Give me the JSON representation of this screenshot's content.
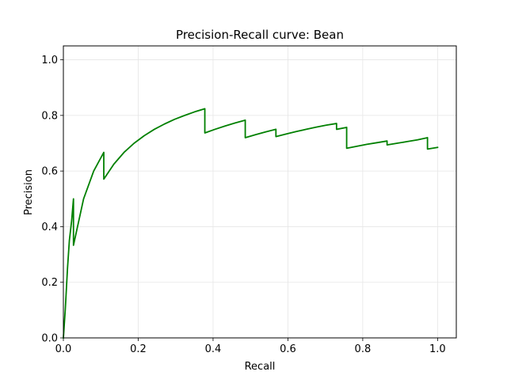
{
  "chart_data": {
    "type": "line",
    "title": "Precision-Recall curve: Bean",
    "xlabel": "Recall",
    "ylabel": "Precision",
    "xlim": [
      0.0,
      1.05
    ],
    "ylim": [
      0.0,
      1.05
    ],
    "xticks": [
      "0.0",
      "0.2",
      "0.4",
      "0.6",
      "0.8",
      "1.0"
    ],
    "yticks": [
      "0.0",
      "0.2",
      "0.4",
      "0.6",
      "0.8",
      "1.0"
    ],
    "grid": true,
    "series": [
      {
        "color": "#008000",
        "x": [
          0.0,
          0.005,
          0.011,
          0.016,
          0.022,
          0.027,
          0.027,
          0.054,
          0.081,
          0.108,
          0.108,
          0.135,
          0.162,
          0.189,
          0.216,
          0.243,
          0.27,
          0.297,
          0.324,
          0.351,
          0.378,
          0.378,
          0.405,
          0.432,
          0.459,
          0.486,
          0.486,
          0.514,
          0.541,
          0.568,
          0.568,
          0.595,
          0.622,
          0.649,
          0.676,
          0.703,
          0.73,
          0.73,
          0.757,
          0.757,
          0.784,
          0.811,
          0.838,
          0.865,
          0.865,
          0.892,
          0.919,
          0.946,
          0.973,
          0.973,
          1.0
        ],
        "y": [
          0.0,
          0.1,
          0.25,
          0.35,
          0.42,
          0.5,
          0.333,
          0.5,
          0.6,
          0.667,
          0.571,
          0.625,
          0.667,
          0.7,
          0.727,
          0.75,
          0.769,
          0.786,
          0.8,
          0.813,
          0.824,
          0.737,
          0.75,
          0.762,
          0.773,
          0.783,
          0.72,
          0.731,
          0.741,
          0.75,
          0.724,
          0.733,
          0.742,
          0.75,
          0.758,
          0.765,
          0.771,
          0.75,
          0.757,
          0.682,
          0.689,
          0.696,
          0.702,
          0.708,
          0.694,
          0.7,
          0.706,
          0.712,
          0.72,
          0.679,
          0.685
        ]
      }
    ]
  }
}
